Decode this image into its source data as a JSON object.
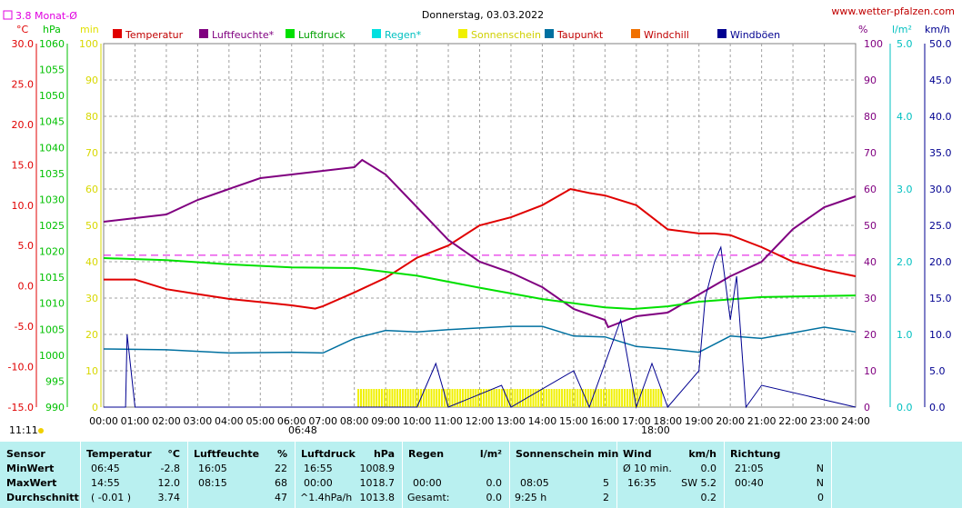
{
  "header": {
    "title": "Donnerstag, 03.03.2022",
    "site": "www.wetter-pfalzen.com",
    "month_avg_label": "3.8 Monat-Ø",
    "clock": "11:11",
    "sunrise": "06:48",
    "sunset": "18:00"
  },
  "units": {
    "temp": "°C",
    "pressure": "hPa",
    "minutes": "min",
    "humidity": "%",
    "rain": "l/m²",
    "wind": "km/h"
  },
  "colors": {
    "temperature": "#e00000",
    "humidity": "#800080",
    "pressure": "#00e000",
    "rain": "#00e0e0",
    "sunshine": "#f0f000",
    "dewpoint": "#0070a0",
    "windchill": "#f07000",
    "gusts": "#000090",
    "avg_line": "#e000e0"
  },
  "chart_data": {
    "type": "line",
    "title": "Donnerstag, 03.03.2022",
    "x_ticks": [
      "00:00",
      "01:00",
      "02:00",
      "03:00",
      "04:00",
      "05:00",
      "06:00",
      "07:00",
      "08:00",
      "09:00",
      "10:00",
      "11:00",
      "12:00",
      "13:00",
      "14:00",
      "15:00",
      "16:00",
      "17:00",
      "18:00",
      "19:00",
      "20:00",
      "21:00",
      "22:00",
      "23:00",
      "24:00"
    ],
    "axes": {
      "temp": {
        "label": "°C",
        "range": [
          -15,
          30
        ],
        "ticks": [
          "30.0",
          "25.0",
          "20.0",
          "15.0",
          "10.0",
          "5.0",
          "0.0",
          "-5.0",
          "-10.0",
          "-15.0"
        ]
      },
      "pressure": {
        "label": "hPa",
        "range": [
          990,
          1060
        ],
        "ticks": [
          "1060",
          "1055",
          "1050",
          "1045",
          "1040",
          "1035",
          "1030",
          "1025",
          "1020",
          "1015",
          "1010",
          "1005",
          "1000",
          "995",
          "990"
        ]
      },
      "minutes": {
        "label": "min",
        "range": [
          0,
          100
        ],
        "ticks": [
          "100",
          "90",
          "80",
          "70",
          "60",
          "50",
          "40",
          "30",
          "20",
          "10",
          "0"
        ]
      },
      "humidity": {
        "label": "%",
        "range": [
          0,
          100
        ],
        "ticks": [
          "100",
          "90",
          "80",
          "70",
          "60",
          "50",
          "40",
          "30",
          "20",
          "10",
          "0"
        ]
      },
      "rain": {
        "label": "l/m²",
        "range": [
          0,
          5
        ],
        "ticks": [
          "5.0",
          "4.0",
          "3.0",
          "2.0",
          "1.0",
          "0.0"
        ]
      },
      "wind": {
        "label": "km/h",
        "range": [
          0,
          50
        ],
        "ticks": [
          "50.0",
          "45.0",
          "40.0",
          "35.0",
          "30.0",
          "25.0",
          "20.0",
          "15.0",
          "10.0",
          "5.0",
          "0.0"
        ]
      }
    },
    "legend": [
      "Temperatur",
      "Luftfeuchte*",
      "Luftdruck",
      "Regen*",
      "Sonnenschein",
      "Taupunkt",
      "Windchill",
      "Windböen"
    ],
    "month_avg_temp": 3.8,
    "series": [
      {
        "name": "Temperatur",
        "axis": "temp",
        "points": [
          [
            0,
            0.8
          ],
          [
            1,
            0.8
          ],
          [
            2,
            -0.4
          ],
          [
            3,
            -1.0
          ],
          [
            4,
            -1.6
          ],
          [
            5,
            -2.0
          ],
          [
            6,
            -2.4
          ],
          [
            6.75,
            -2.8
          ],
          [
            7,
            -2.5
          ],
          [
            8,
            -0.8
          ],
          [
            9,
            1.0
          ],
          [
            10,
            3.5
          ],
          [
            11,
            5.0
          ],
          [
            12,
            7.5
          ],
          [
            13,
            8.5
          ],
          [
            14,
            10.0
          ],
          [
            14.9,
            12.0
          ],
          [
            15.5,
            11.5
          ],
          [
            16,
            11.2
          ],
          [
            17,
            10.0
          ],
          [
            18,
            7.0
          ],
          [
            19,
            6.5
          ],
          [
            19.5,
            6.5
          ],
          [
            20,
            6.3
          ],
          [
            21,
            4.8
          ],
          [
            22,
            3.0
          ],
          [
            23,
            2.0
          ],
          [
            24,
            1.2
          ]
        ]
      },
      {
        "name": "Luftfeuchte*",
        "axis": "humidity",
        "points": [
          [
            0,
            51
          ],
          [
            1,
            52
          ],
          [
            2,
            53
          ],
          [
            3,
            57
          ],
          [
            4,
            60
          ],
          [
            5,
            63
          ],
          [
            6,
            64
          ],
          [
            7,
            65
          ],
          [
            8,
            66
          ],
          [
            8.25,
            68
          ],
          [
            9,
            64
          ],
          [
            10,
            55
          ],
          [
            11,
            46
          ],
          [
            12,
            40
          ],
          [
            13,
            37
          ],
          [
            14,
            33
          ],
          [
            15,
            27
          ],
          [
            16,
            24
          ],
          [
            16.1,
            22
          ],
          [
            17,
            25
          ],
          [
            18,
            26
          ],
          [
            19,
            31
          ],
          [
            20,
            36
          ],
          [
            21,
            40
          ],
          [
            22,
            49
          ],
          [
            23,
            55
          ],
          [
            24,
            58
          ]
        ]
      },
      {
        "name": "Luftdruck",
        "axis": "pressure",
        "points": [
          [
            0,
            1018.7
          ],
          [
            2,
            1018.3
          ],
          [
            4,
            1017.5
          ],
          [
            6,
            1016.9
          ],
          [
            8,
            1016.8
          ],
          [
            10,
            1015.3
          ],
          [
            12,
            1013.0
          ],
          [
            14,
            1010.8
          ],
          [
            16,
            1009.2
          ],
          [
            16.9,
            1008.9
          ],
          [
            18,
            1009.4
          ],
          [
            19,
            1010.3
          ],
          [
            21,
            1011.2
          ],
          [
            24,
            1011.5
          ]
        ]
      },
      {
        "name": "Taupunkt",
        "axis": "temp",
        "points": [
          [
            0,
            -7.8
          ],
          [
            2,
            -7.9
          ],
          [
            4,
            -8.3
          ],
          [
            6,
            -8.2
          ],
          [
            7,
            -8.3
          ],
          [
            8,
            -6.5
          ],
          [
            9,
            -5.5
          ],
          [
            10,
            -5.7
          ],
          [
            11,
            -5.4
          ],
          [
            12,
            -5.2
          ],
          [
            13,
            -5.0
          ],
          [
            14,
            -5.0
          ],
          [
            15,
            -6.2
          ],
          [
            16,
            -6.3
          ],
          [
            17,
            -7.5
          ],
          [
            18,
            -7.8
          ],
          [
            19,
            -8.2
          ],
          [
            20,
            -6.2
          ],
          [
            21,
            -6.5
          ],
          [
            22,
            -5.8
          ],
          [
            23,
            -5.1
          ],
          [
            24,
            -5.7
          ]
        ]
      },
      {
        "name": "Windböen",
        "axis": "wind",
        "points": [
          [
            0,
            0
          ],
          [
            0.7,
            0
          ],
          [
            0.75,
            10
          ],
          [
            1,
            0
          ],
          [
            10,
            0
          ],
          [
            10.6,
            6
          ],
          [
            11,
            0
          ],
          [
            12.7,
            3
          ],
          [
            13,
            0
          ],
          [
            15,
            5
          ],
          [
            15.5,
            0
          ],
          [
            16.5,
            12
          ],
          [
            17,
            0
          ],
          [
            17.5,
            6
          ],
          [
            18,
            0
          ],
          [
            19,
            5
          ],
          [
            19.2,
            15
          ],
          [
            19.5,
            20
          ],
          [
            19.7,
            22
          ],
          [
            20,
            12
          ],
          [
            20.2,
            18
          ],
          [
            20.5,
            0
          ],
          [
            21,
            3
          ],
          [
            24,
            0
          ]
        ]
      }
    ],
    "sunshine_bars": {
      "axis": "minutes",
      "from": 8.1,
      "to": 17.8,
      "value": 5
    }
  },
  "stats": {
    "headers": {
      "sensor": "Sensor",
      "temperature": "Temperatur",
      "temp_unit": "°C",
      "humidity": "Luftfeuchte",
      "hum_unit": "%",
      "pressure": "Luftdruck",
      "press_unit": "hPa",
      "rain": "Regen",
      "rain_unit": "l/m²",
      "sun": "Sonnenschein min",
      "wind": "Wind",
      "wind_unit": "km/h",
      "direction": "Richtung"
    },
    "rows": [
      {
        "label": "MinWert",
        "temp_time": "06:45",
        "temp_val": "-2.8",
        "hum_time": "16:05",
        "hum_val": "22",
        "press_time": "16:55",
        "press_val": "1008.9",
        "rain_time": "",
        "rain_val": "",
        "sun_time": "",
        "sun_val": "",
        "wind_time": "Ø 10 min.",
        "wind_val": "0.0",
        "dir_time": "21:05",
        "dir_val": "N"
      },
      {
        "label": "MaxWert",
        "temp_time": "14:55",
        "temp_val": "12.0",
        "hum_time": "08:15",
        "hum_val": "68",
        "press_time": "00:00",
        "press_val": "1018.7",
        "rain_time": "00:00",
        "rain_val": "0.0",
        "sun_time": "08:05",
        "sun_val": "5",
        "wind_time": "16:35",
        "wind_val": "SW 5.2",
        "dir_time": "00:40",
        "dir_val": "N"
      },
      {
        "label": "Durchschnitt",
        "temp_time": "( -0.01 )",
        "temp_val": "3.74",
        "hum_time": "",
        "hum_val": "47",
        "press_time": "^1.4hPa/h",
        "press_val": "1013.8",
        "rain_time": "Gesamt:",
        "rain_val": "0.0",
        "sun_time": "9:25 h",
        "sun_val": "2",
        "wind_time": "",
        "wind_val": "0.2",
        "dir_time": "",
        "dir_val": "0"
      }
    ]
  }
}
